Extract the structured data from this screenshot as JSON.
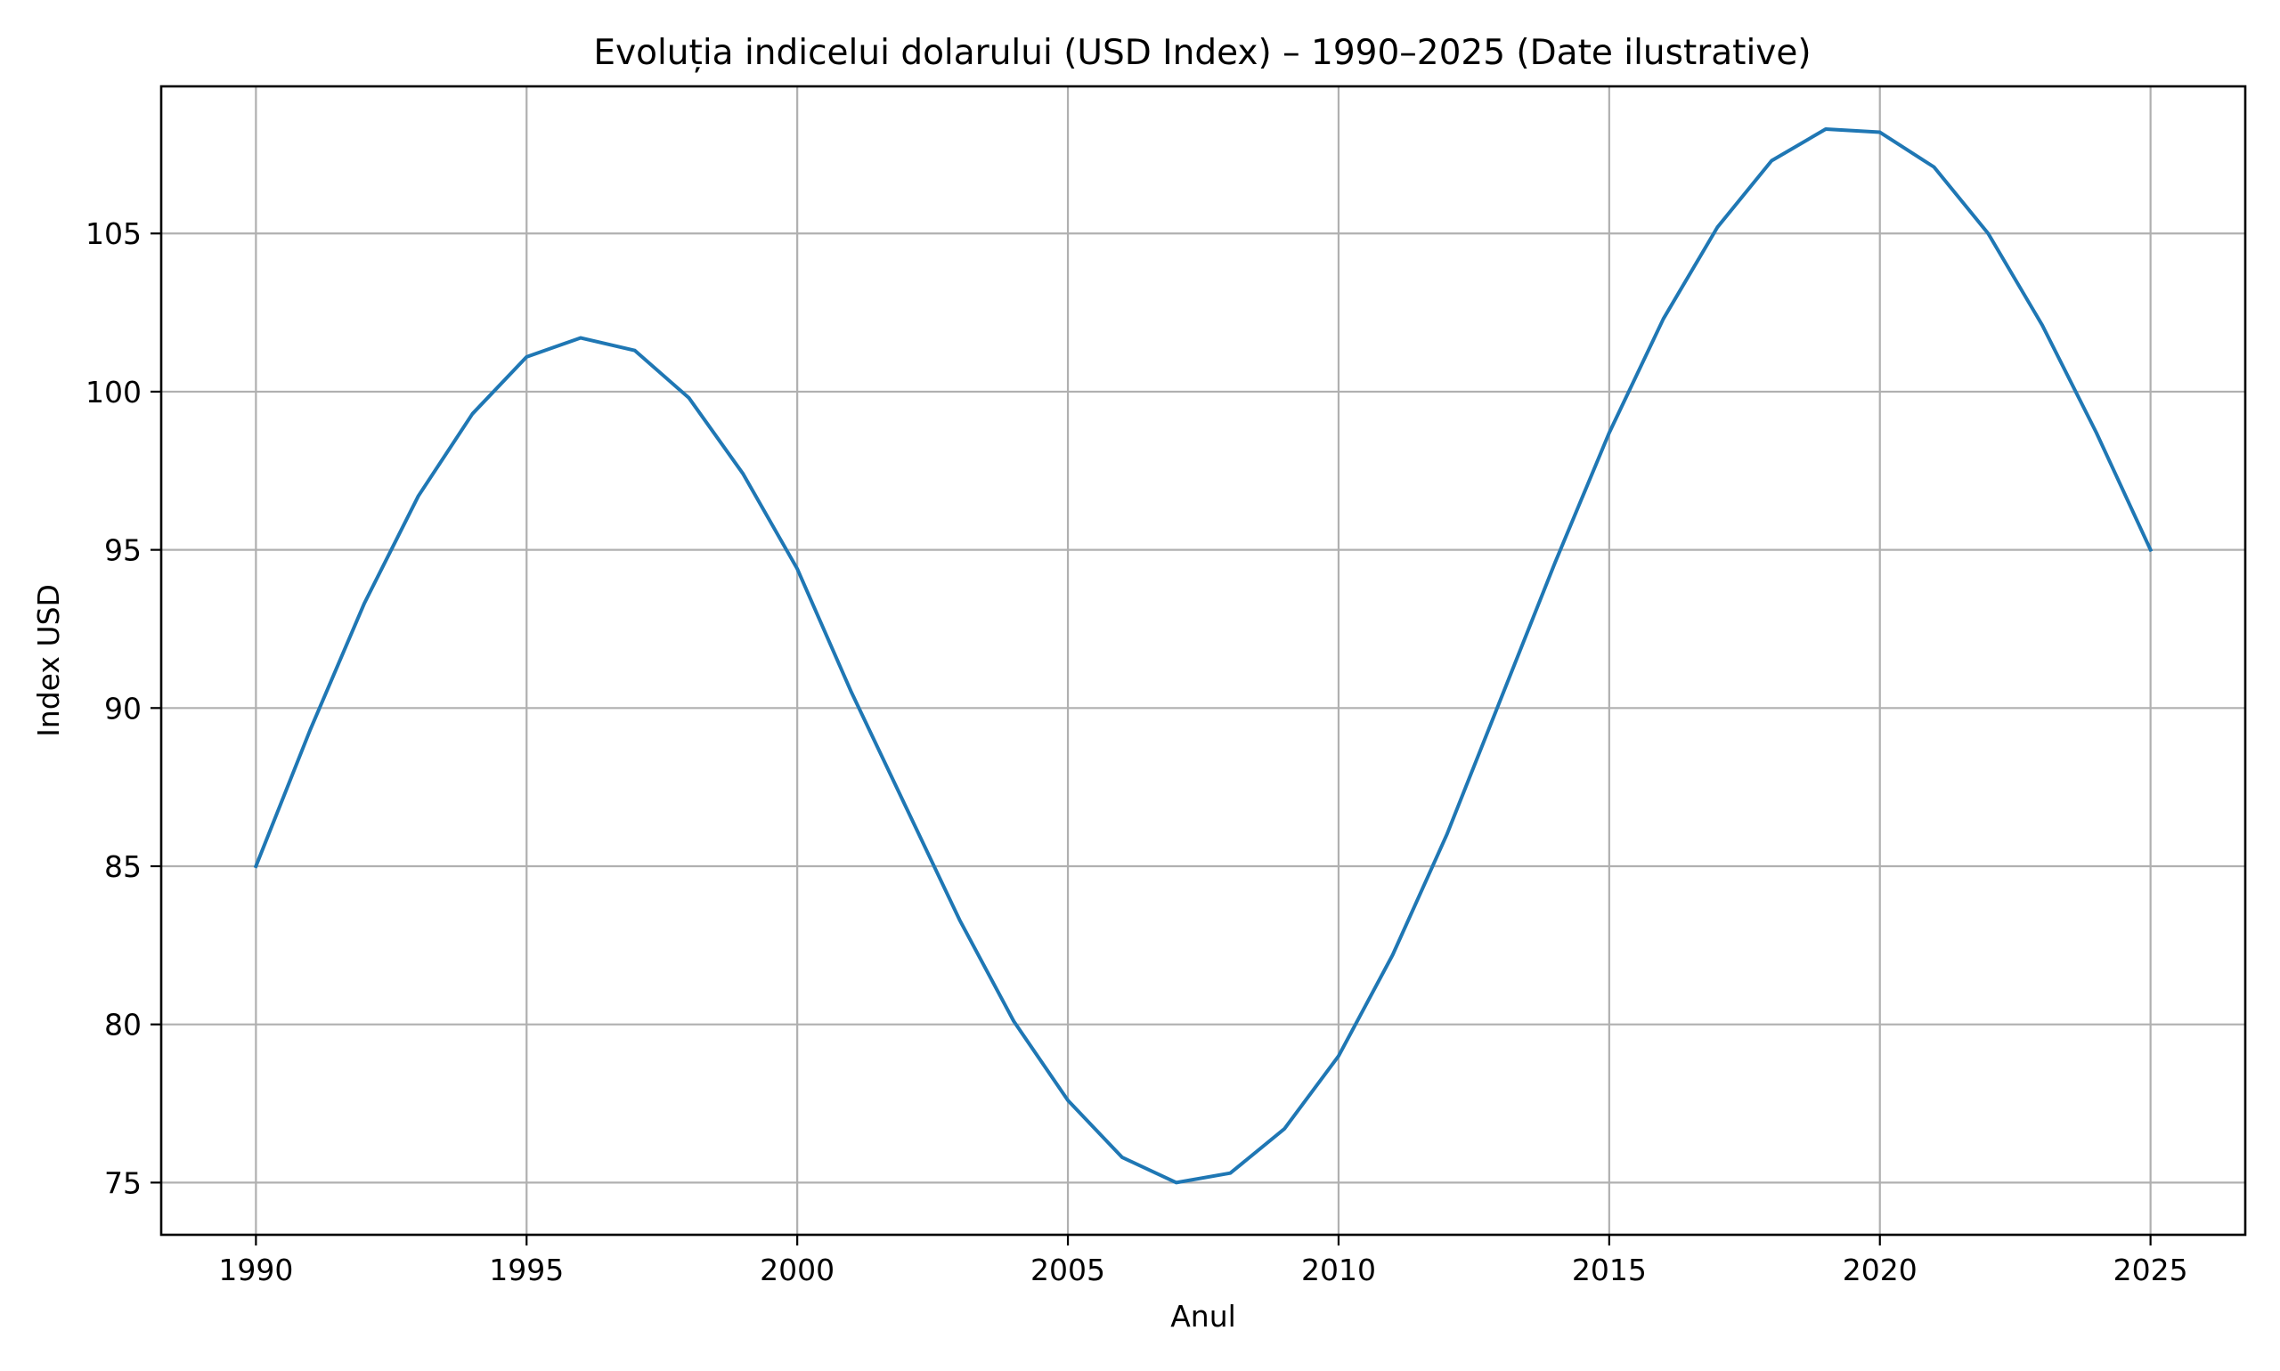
{
  "chart_data": {
    "type": "line",
    "title": "Evoluția indicelui dolarului (USD Index) – 1990–2025 (Date ilustrative)",
    "xlabel": "Anul",
    "ylabel": "Index USD",
    "x": [
      1990,
      1991,
      1992,
      1993,
      1994,
      1995,
      1996,
      1997,
      1998,
      1999,
      2000,
      2001,
      2002,
      2003,
      2004,
      2005,
      2006,
      2007,
      2008,
      2009,
      2010,
      2011,
      2012,
      2013,
      2014,
      2015,
      2016,
      2017,
      2018,
      2019,
      2020,
      2021,
      2022,
      2023,
      2024,
      2025
    ],
    "series": [
      {
        "color": "#1f77b4",
        "values": [
          85.0,
          89.3,
          93.3,
          96.7,
          99.3,
          101.1,
          101.7,
          101.3,
          99.8,
          97.4,
          94.4,
          90.5,
          86.9,
          83.3,
          80.1,
          77.6,
          75.8,
          75.0,
          75.3,
          76.7,
          79.0,
          82.2,
          86.0,
          90.3,
          94.6,
          98.7,
          102.3,
          105.2,
          107.3,
          108.3,
          108.2,
          107.1,
          105.0,
          102.1,
          98.7,
          95.0
        ]
      }
    ],
    "xlim": [
      1988.25,
      2026.75
    ],
    "ylim": [
      73.35,
      109.65
    ],
    "xticks": [
      1990,
      1995,
      2000,
      2005,
      2010,
      2015,
      2020,
      2025
    ],
    "yticks": [
      75,
      80,
      85,
      90,
      95,
      100,
      105
    ],
    "grid": true
  }
}
